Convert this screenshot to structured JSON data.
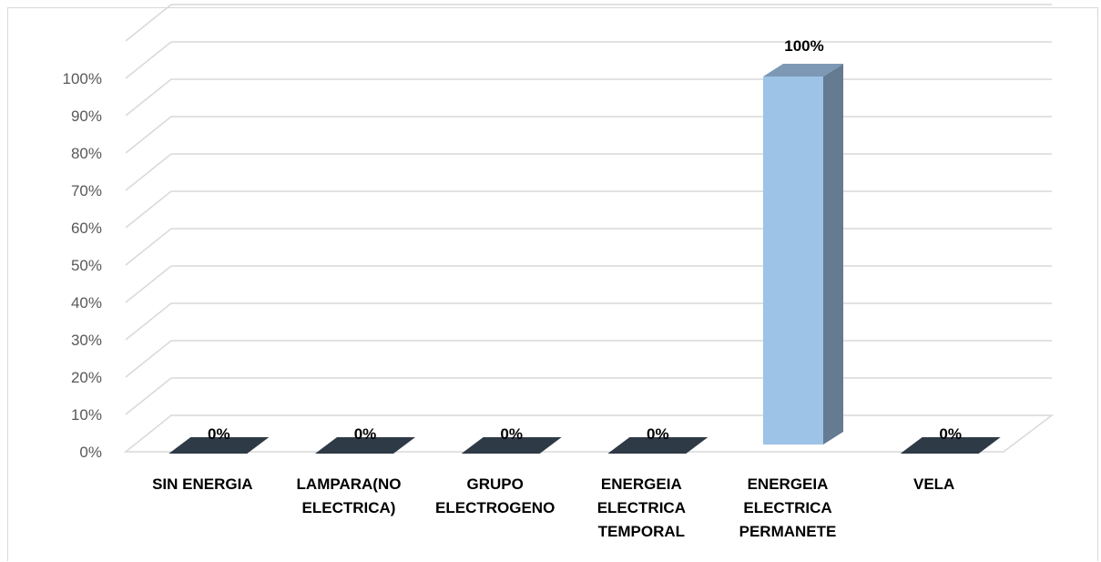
{
  "chart_data": {
    "type": "bar",
    "style": "3d-column",
    "categories": [
      [
        "SIN ENERGIA"
      ],
      [
        "LAMPARA(NO",
        "ELECTRICA)"
      ],
      [
        "GRUPO",
        "ELECTROGENO"
      ],
      [
        "ENERGEIA",
        "ELECTRICA",
        "TEMPORAL"
      ],
      [
        "ENERGEIA",
        "ELECTRICA",
        "PERMANETE"
      ],
      [
        "VELA"
      ]
    ],
    "values": [
      0,
      0,
      0,
      0,
      100,
      0
    ],
    "data_labels": [
      "0%",
      "0%",
      "0%",
      "0%",
      "100%",
      "0%"
    ],
    "y_ticks": [
      "0%",
      "10%",
      "20%",
      "30%",
      "40%",
      "50%",
      "60%",
      "70%",
      "80%",
      "90%",
      "100%"
    ],
    "ylim": [
      0,
      100
    ],
    "grid": true,
    "legend": "none",
    "colors": {
      "bar_front": "#9dc3e6",
      "bar_side": "#647b92",
      "bar_top": "#7d98b5",
      "zero_bar": "#2e3a46",
      "grid": "#d9d9d9",
      "axis_text": "#595959"
    }
  }
}
